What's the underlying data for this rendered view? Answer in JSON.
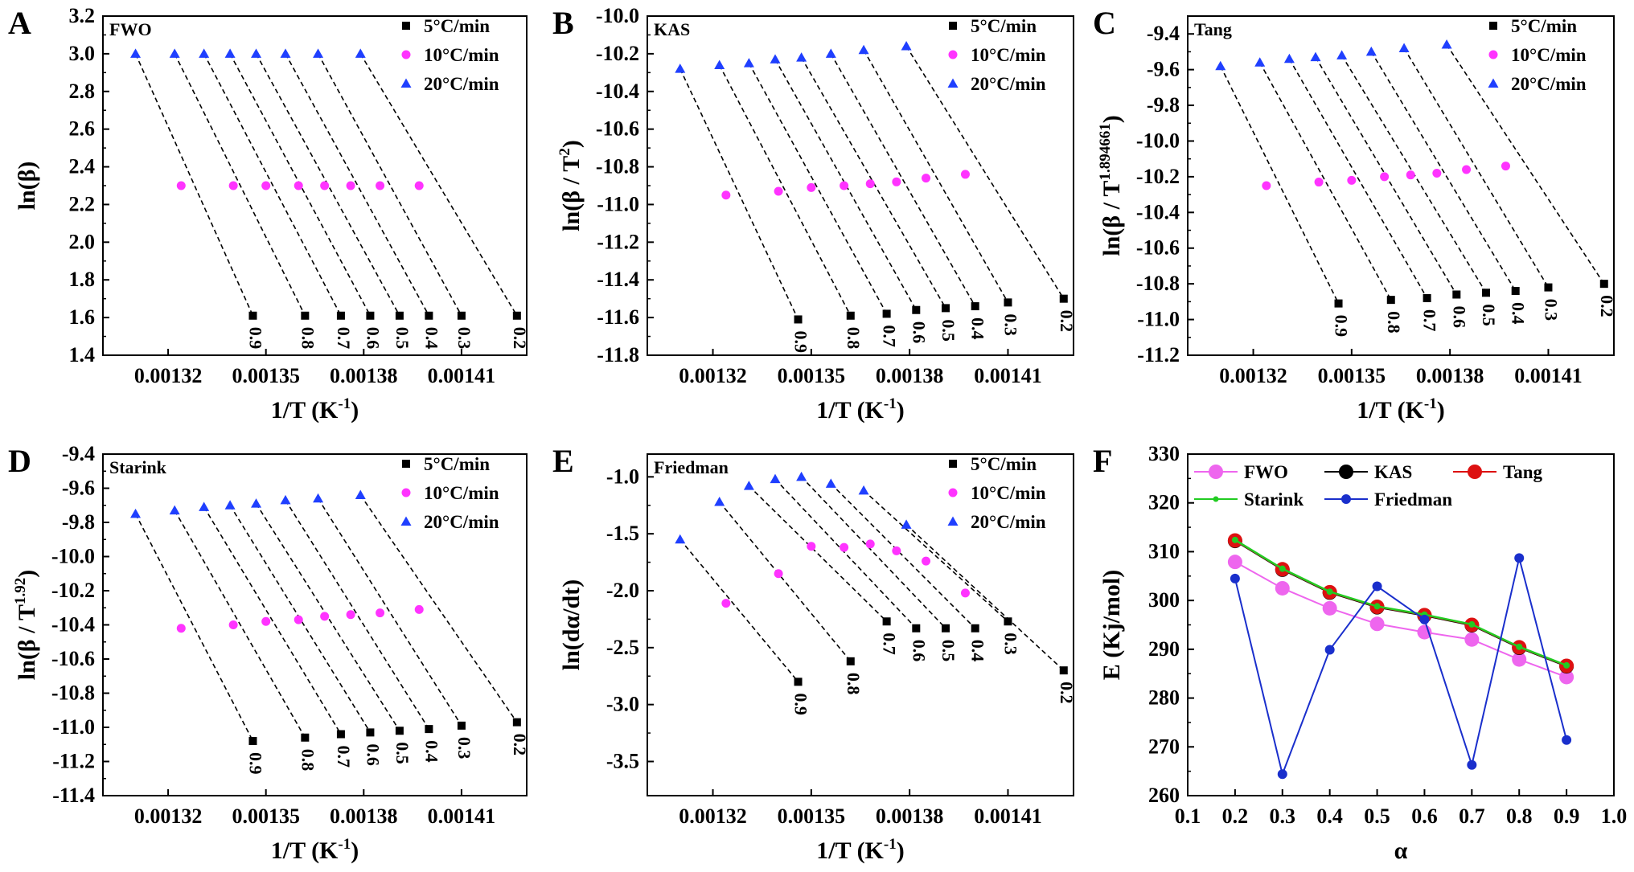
{
  "legend_labels": [
    "5°C/min",
    "10°C/min",
    "20°C/min"
  ],
  "colors": {
    "r5": "#000000",
    "r10": "#ff33ff",
    "r20": "#1f3fff",
    "fwo": "#ee66ee",
    "kas": "#000000",
    "tang": "#dd1111",
    "starink": "#22cc22",
    "friedman": "#1a2fcc"
  },
  "chart_data": [
    {
      "letter": "A",
      "type": "scatter",
      "method": "FWO",
      "xlabel": "1/T (K",
      "xlabel_sup": "-1",
      "xlabel_end": ")",
      "ylabel": "ln(β)",
      "ylabel_sup": "",
      "xlim": [
        0.0013,
        0.00143
      ],
      "ylim": [
        1.4,
        3.2
      ],
      "xticks": [
        "0.00132",
        "0.00135",
        "0.00138",
        "0.00141"
      ],
      "xtick_vals": [
        0.00132,
        0.00135,
        0.00138,
        0.00141
      ],
      "yticks": [
        "1.4",
        "1.6",
        "1.8",
        "2.0",
        "2.2",
        "2.4",
        "2.6",
        "2.8",
        "3.0",
        "3.2"
      ],
      "alpha_labels": [
        "0.9",
        "0.8",
        "0.7",
        "0.6",
        "0.5",
        "0.4",
        "0.3",
        "0.2"
      ],
      "x5": [
        0.001346,
        0.001362,
        0.001373,
        0.001382,
        0.001391,
        0.0014,
        0.00141,
        0.001427
      ],
      "y5": [
        1.61,
        1.61,
        1.61,
        1.61,
        1.61,
        1.61,
        1.61,
        1.61
      ],
      "x10": [
        0.001324,
        0.00134,
        0.00135,
        0.00136,
        0.001368,
        0.001376,
        0.001385,
        0.001397
      ],
      "y10": [
        2.3,
        2.3,
        2.3,
        2.3,
        2.3,
        2.3,
        2.3,
        2.3
      ],
      "x20": [
        0.00131,
        0.001322,
        0.001331,
        0.001339,
        0.001347,
        0.001356,
        0.001366,
        0.001379
      ],
      "y20": [
        3.0,
        3.0,
        3.0,
        3.0,
        3.0,
        3.0,
        3.0,
        3.0
      ]
    },
    {
      "letter": "B",
      "type": "scatter",
      "method": "KAS",
      "xlabel": "1/T (K",
      "xlabel_sup": "-1",
      "xlabel_end": ")",
      "ylabel": "ln(β / T",
      "ylabel_sup": "2",
      "ylabel_end": ")",
      "xlim": [
        0.0013,
        0.00143
      ],
      "ylim": [
        -11.8,
        -10.0
      ],
      "xticks": [
        "0.00132",
        "0.00135",
        "0.00138",
        "0.00141"
      ],
      "xtick_vals": [
        0.00132,
        0.00135,
        0.00138,
        0.00141
      ],
      "yticks": [
        "-11.8",
        "-11.6",
        "-11.4",
        "-11.2",
        "-11.0",
        "-10.8",
        "-10.6",
        "-10.4",
        "-10.2",
        "-10.0"
      ],
      "alpha_labels": [
        "0.9",
        "0.8",
        "0.7",
        "0.6",
        "0.5",
        "0.4",
        "0.3",
        "0.2"
      ],
      "x5": [
        0.001346,
        0.001362,
        0.001373,
        0.001382,
        0.001391,
        0.0014,
        0.00141,
        0.001427
      ],
      "y5": [
        -11.61,
        -11.59,
        -11.58,
        -11.56,
        -11.55,
        -11.54,
        -11.52,
        -11.5
      ],
      "x10": [
        0.001324,
        0.00134,
        0.00135,
        0.00136,
        0.001368,
        0.001376,
        0.001385,
        0.001397
      ],
      "y10": [
        -10.95,
        -10.93,
        -10.91,
        -10.9,
        -10.89,
        -10.88,
        -10.86,
        -10.84
      ],
      "x20": [
        0.00131,
        0.001322,
        0.001331,
        0.001339,
        0.001347,
        0.001356,
        0.001366,
        0.001379
      ],
      "y20": [
        -10.28,
        -10.26,
        -10.25,
        -10.23,
        -10.22,
        -10.2,
        -10.18,
        -10.16
      ]
    },
    {
      "letter": "C",
      "type": "scatter",
      "method": "Tang",
      "xlabel": "1/T (K",
      "xlabel_sup": "-1",
      "xlabel_end": ")",
      "ylabel": "ln(β / T",
      "ylabel_sup": "1.894661",
      "ylabel_end": ")",
      "xlim": [
        0.0013,
        0.00143
      ],
      "ylim": [
        -11.2,
        -9.3
      ],
      "xticks": [
        "0.00132",
        "0.00135",
        "0.00138",
        "0.00141"
      ],
      "xtick_vals": [
        0.00132,
        0.00135,
        0.00138,
        0.00141
      ],
      "yticks": [
        "-11.2",
        "-11.0",
        "-10.8",
        "-10.6",
        "-10.4",
        "-10.2",
        "-10.0",
        "-9.8",
        "-9.6",
        "-9.4"
      ],
      "alpha_labels": [
        "0.9",
        "0.8",
        "0.7",
        "0.6",
        "0.5",
        "0.4",
        "0.3",
        "0.2"
      ],
      "x5": [
        0.001346,
        0.001362,
        0.001373,
        0.001382,
        0.001391,
        0.0014,
        0.00141,
        0.001427
      ],
      "y5": [
        -10.91,
        -10.89,
        -10.88,
        -10.86,
        -10.85,
        -10.84,
        -10.82,
        -10.8
      ],
      "x10": [
        0.001324,
        0.00134,
        0.00135,
        0.00136,
        0.001368,
        0.001376,
        0.001385,
        0.001397
      ],
      "y10": [
        -10.25,
        -10.23,
        -10.22,
        -10.2,
        -10.19,
        -10.18,
        -10.16,
        -10.14
      ],
      "x20": [
        0.00131,
        0.001322,
        0.001331,
        0.001339,
        0.001347,
        0.001356,
        0.001366,
        0.001379
      ],
      "y20": [
        -9.58,
        -9.56,
        -9.54,
        -9.53,
        -9.52,
        -9.5,
        -9.48,
        -9.46
      ]
    },
    {
      "letter": "D",
      "type": "scatter",
      "method": "Starink",
      "xlabel": "1/T (K",
      "xlabel_sup": "-1",
      "xlabel_end": ")",
      "ylabel": "ln(β / T",
      "ylabel_sup": "1.92",
      "ylabel_end": ")",
      "xlim": [
        0.0013,
        0.00143
      ],
      "ylim": [
        -11.4,
        -9.4
      ],
      "xticks": [
        "0.00132",
        "0.00135",
        "0.00138",
        "0.00141"
      ],
      "xtick_vals": [
        0.00132,
        0.00135,
        0.00138,
        0.00141
      ],
      "yticks": [
        "-11.4",
        "-11.2",
        "-11.0",
        "-10.8",
        "-10.6",
        "-10.4",
        "-10.2",
        "-10.0",
        "-9.8",
        "-9.6",
        "-9.4"
      ],
      "alpha_labels": [
        "0.9",
        "0.8",
        "0.7",
        "0.6",
        "0.5",
        "0.4",
        "0.3",
        "0.2"
      ],
      "x5": [
        0.001346,
        0.001362,
        0.001373,
        0.001382,
        0.001391,
        0.0014,
        0.00141,
        0.001427
      ],
      "y5": [
        -11.08,
        -11.06,
        -11.04,
        -11.03,
        -11.02,
        -11.01,
        -10.99,
        -10.97
      ],
      "x10": [
        0.001324,
        0.00134,
        0.00135,
        0.00136,
        0.001368,
        0.001376,
        0.001385,
        0.001397
      ],
      "y10": [
        -10.42,
        -10.4,
        -10.38,
        -10.37,
        -10.35,
        -10.34,
        -10.33,
        -10.31
      ],
      "x20": [
        0.00131,
        0.001322,
        0.001331,
        0.001339,
        0.001347,
        0.001356,
        0.001366,
        0.001379
      ],
      "y20": [
        -9.75,
        -9.73,
        -9.71,
        -9.7,
        -9.69,
        -9.67,
        -9.66,
        -9.64
      ]
    },
    {
      "letter": "E",
      "type": "scatter",
      "method": "Friedman",
      "xlabel": "1/T (K",
      "xlabel_sup": "-1",
      "xlabel_end": ")",
      "ylabel": "ln(dα/dt)",
      "ylabel_sup": "",
      "xlim": [
        0.0013,
        0.00143
      ],
      "ylim": [
        -3.8,
        -0.8
      ],
      "xticks": [
        "0.00132",
        "0.00135",
        "0.00138",
        "0.00141"
      ],
      "xtick_vals": [
        0.00132,
        0.00135,
        0.00138,
        0.00141
      ],
      "yticks": [
        "-3.5",
        "-3.0",
        "-2.5",
        "-2.0",
        "-1.5",
        "-1.0"
      ],
      "alpha_labels": [
        "0.9",
        "0.8",
        "0.7",
        "0.6",
        "0.5",
        "0.4",
        "0.3",
        "0.2"
      ],
      "x5": [
        0.001346,
        0.001362,
        0.001373,
        0.001382,
        0.001391,
        0.0014,
        0.00141,
        0.001427
      ],
      "y5": [
        -2.8,
        -2.62,
        -2.27,
        -2.33,
        -2.33,
        -2.33,
        -2.27,
        -2.7
      ],
      "x10": [
        0.001324,
        0.00134,
        0.00135,
        0.00136,
        0.001368,
        0.001376,
        0.001385,
        0.001397
      ],
      "y10": [
        -2.11,
        -1.85,
        -1.61,
        -1.62,
        -1.59,
        -1.65,
        -1.74,
        -2.02
      ],
      "x20": [
        0.00131,
        0.001322,
        0.001331,
        0.001339,
        0.001347,
        0.001356,
        0.001366,
        0.001379
      ],
      "y20": [
        -1.55,
        -1.22,
        -1.08,
        -1.02,
        -1.0,
        -1.06,
        -1.12,
        -1.42
      ]
    },
    {
      "letter": "F",
      "type": "line",
      "xlabel": "α",
      "ylabel": "E (Kj/mol)",
      "xlim": [
        0.1,
        1.0
      ],
      "ylim": [
        260,
        330
      ],
      "xticks": [
        "0.1",
        "0.2",
        "0.3",
        "0.4",
        "0.5",
        "0.6",
        "0.7",
        "0.8",
        "0.9",
        "1.0"
      ],
      "yticks": [
        "260",
        "270",
        "280",
        "290",
        "300",
        "310",
        "320",
        "330"
      ],
      "x": [
        0.2,
        0.3,
        0.4,
        0.5,
        0.6,
        0.7,
        0.8,
        0.9
      ],
      "series": [
        {
          "name": "FWO",
          "values": [
            307.9,
            302.5,
            298.4,
            295.2,
            293.5,
            292.0,
            287.9,
            284.3
          ]
        },
        {
          "name": "KAS",
          "values": [
            312.2,
            306.3,
            301.6,
            298.6,
            296.9,
            294.9,
            290.3,
            286.5
          ]
        },
        {
          "name": "Tang",
          "values": [
            312.3,
            306.4,
            301.7,
            298.7,
            297.0,
            295.0,
            290.4,
            286.6
          ]
        },
        {
          "name": "Starink",
          "values": [
            312.4,
            306.5,
            301.8,
            298.8,
            297.1,
            295.1,
            290.5,
            286.7
          ]
        },
        {
          "name": "Friedman",
          "values": [
            304.5,
            264.4,
            289.9,
            302.9,
            296.1,
            266.3,
            308.7,
            271.4
          ]
        }
      ]
    }
  ]
}
